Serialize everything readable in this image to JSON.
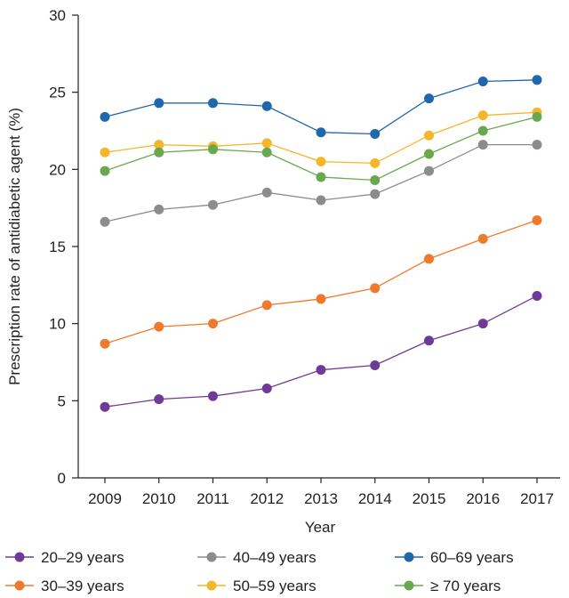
{
  "chart_data": {
    "type": "line",
    "xlabel": "Year",
    "ylabel": "Prescription rate of antidiabetic agent (%)",
    "x": [
      "2009",
      "2010",
      "2011",
      "2012",
      "2013",
      "2014",
      "2015",
      "2016",
      "2017"
    ],
    "ylim": [
      0,
      30
    ],
    "yticks": [
      0,
      5,
      10,
      15,
      20,
      25,
      30
    ],
    "grid": false,
    "legend_position": "bottom",
    "series": [
      {
        "name": "20–29 years",
        "color": "#6f3a97",
        "values": [
          4.6,
          5.1,
          5.3,
          5.8,
          7.0,
          7.3,
          8.9,
          10.0,
          11.8
        ]
      },
      {
        "name": "30–39 years",
        "color": "#ef7a2e",
        "values": [
          8.7,
          9.8,
          10.0,
          11.2,
          11.6,
          12.3,
          14.2,
          15.5,
          16.7
        ]
      },
      {
        "name": "40–49 years",
        "color": "#8c8c8c",
        "values": [
          16.6,
          17.4,
          17.7,
          18.5,
          18.0,
          18.4,
          19.9,
          21.6,
          21.6
        ]
      },
      {
        "name": "50–59 years",
        "color": "#f6b629",
        "values": [
          21.1,
          21.6,
          21.5,
          21.7,
          20.5,
          20.4,
          22.2,
          23.5,
          23.7
        ]
      },
      {
        "name": "60–69 years",
        "color": "#2167ae",
        "values": [
          23.4,
          24.3,
          24.3,
          24.1,
          22.4,
          22.3,
          24.6,
          25.7,
          25.8
        ]
      },
      {
        "name": "≥ 70 years",
        "color": "#6aa84f",
        "values": [
          19.9,
          21.1,
          21.3,
          21.1,
          19.5,
          19.3,
          21.0,
          22.5,
          23.4
        ]
      }
    ],
    "legend_order": [
      0,
      2,
      4,
      1,
      3,
      5
    ]
  }
}
